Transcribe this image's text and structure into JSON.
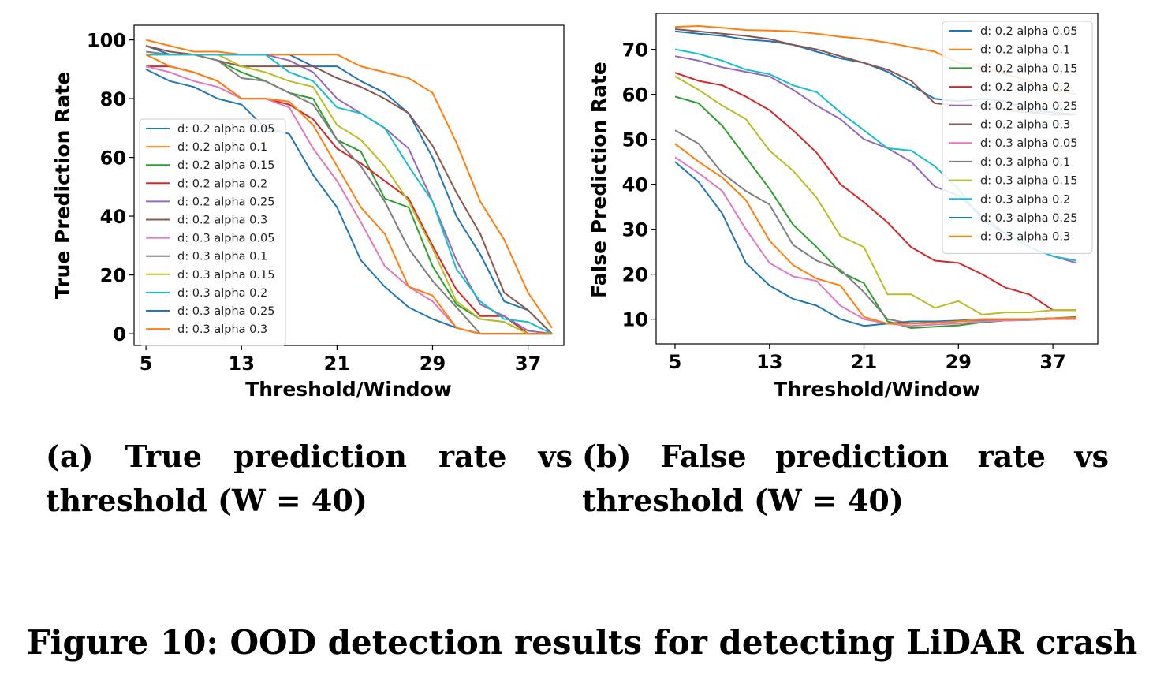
{
  "figure_caption": "Figure 10: OOD detection results for detecting LiDAR crash",
  "subcaptions": [
    "(a) True prediction rate vs threshold (W = 40)",
    "(b) False prediction rate vs threshold (W = 40)"
  ],
  "chart_data": [
    {
      "type": "line",
      "xlabel": "Threshold/Window",
      "ylabel": "True Prediction Rate",
      "xlim": [
        4,
        40
      ],
      "ylim": [
        -4,
        105
      ],
      "xticks": [
        5,
        13,
        21,
        29,
        37
      ],
      "yticks": [
        0,
        20,
        40,
        60,
        80,
        100
      ],
      "grid": false,
      "legend_position": "left",
      "x": [
        5,
        7,
        9,
        11,
        13,
        15,
        17,
        19,
        21,
        23,
        25,
        27,
        29,
        31,
        33,
        35,
        37,
        39
      ],
      "series": [
        {
          "name": "d: 0.2 alpha 0.05",
          "color": "#1f77b4",
          "values": [
            98,
            95,
            95,
            95,
            95,
            95,
            95,
            91,
            91,
            86,
            82,
            75,
            60,
            40,
            27,
            11,
            8,
            0
          ]
        },
        {
          "name": "d: 0.2 alpha 0.1",
          "color": "#ff7f0e",
          "values": [
            100,
            98,
            96,
            96,
            95,
            95,
            95,
            95,
            95,
            91,
            89,
            87,
            82,
            65,
            45,
            32,
            14,
            2
          ]
        },
        {
          "name": "d: 0.2 alpha 0.15",
          "color": "#2ca02c",
          "values": [
            95,
            95,
            95,
            93,
            89,
            86,
            82,
            80,
            66,
            62,
            46,
            43,
            23,
            10,
            5,
            4,
            0,
            0
          ]
        },
        {
          "name": "d: 0.2 alpha 0.2",
          "color": "#d62728",
          "values": [
            91,
            91,
            89,
            86,
            80,
            80,
            78,
            73,
            63,
            58,
            52,
            46,
            30,
            15,
            6,
            6,
            0,
            0
          ]
        },
        {
          "name": "d: 0.2 alpha 0.25",
          "color": "#9467bd",
          "values": [
            95,
            95,
            95,
            95,
            95,
            95,
            93,
            89,
            80,
            75,
            70,
            63,
            45,
            25,
            10,
            6,
            1,
            0
          ]
        },
        {
          "name": "d: 0.2 alpha 0.3",
          "color": "#8c564b",
          "values": [
            98,
            96,
            95,
            93,
            91,
            91,
            91,
            91,
            87,
            84,
            80,
            75,
            64,
            48,
            34,
            14,
            8,
            0
          ]
        },
        {
          "name": "d: 0.3 alpha 0.05",
          "color": "#e377c2",
          "values": [
            91,
            89,
            86,
            84,
            80,
            80,
            77,
            63,
            52,
            38,
            23,
            16,
            11,
            2,
            0,
            0,
            0,
            0
          ]
        },
        {
          "name": "d: 0.3 alpha 0.1",
          "color": "#7f7f7f",
          "values": [
            96,
            95,
            95,
            93,
            87,
            86,
            82,
            78,
            66,
            57,
            45,
            29,
            18,
            9,
            0,
            0,
            0,
            0
          ]
        },
        {
          "name": "d: 0.3 alpha 0.15",
          "color": "#bcbd22",
          "values": [
            95,
            95,
            95,
            95,
            91,
            89,
            86,
            84,
            71,
            66,
            57,
            45,
            29,
            11,
            5,
            4,
            0,
            0
          ]
        },
        {
          "name": "d: 0.3 alpha 0.2",
          "color": "#17becf",
          "values": [
            95,
            95,
            95,
            95,
            95,
            95,
            89,
            86,
            77,
            75,
            70,
            57,
            45,
            22,
            11,
            5,
            4,
            0
          ]
        },
        {
          "name": "d: 0.3 alpha 0.25",
          "color": "#1f77b4",
          "values": [
            90,
            86,
            84,
            80,
            78,
            70,
            68,
            54,
            43,
            25,
            16,
            9,
            5,
            2,
            0,
            0,
            0,
            0
          ]
        },
        {
          "name": "d: 0.3 alpha 0.3",
          "color": "#ff7f0e",
          "values": [
            95,
            91,
            89,
            86,
            80,
            80,
            79,
            71,
            57,
            43,
            34,
            16,
            13,
            2,
            0,
            0,
            0,
            0
          ]
        }
      ]
    },
    {
      "type": "line",
      "xlabel": "Threshold/Window",
      "ylabel": "False Prediction Rate",
      "xlim": [
        3.4,
        40.8
      ],
      "ylim": [
        4.5,
        78
      ],
      "xticks": [
        5,
        13,
        21,
        29,
        37
      ],
      "yticks": [
        10,
        20,
        30,
        40,
        50,
        60,
        70
      ],
      "grid": false,
      "legend_position": "upper right",
      "x": [
        5,
        7,
        9,
        11,
        13,
        15,
        17,
        19,
        21,
        23,
        25,
        27,
        29,
        31,
        33,
        35,
        37,
        39
      ],
      "series": [
        {
          "name": "d: 0.2 alpha 0.05",
          "color": "#1f77b4",
          "values": [
            74,
            73.5,
            73,
            72.2,
            71.8,
            71,
            69.5,
            68,
            67,
            65,
            62,
            59,
            58.5,
            59,
            58.5,
            56.5,
            56,
            55.5
          ]
        },
        {
          "name": "d: 0.2 alpha 0.1",
          "color": "#ff7f0e",
          "values": [
            75,
            75.2,
            74.8,
            74.3,
            74.2,
            74,
            73.5,
            72.8,
            72.3,
            71.5,
            70.5,
            69.5,
            67,
            66,
            64.5,
            63,
            61,
            60
          ]
        },
        {
          "name": "d: 0.2 alpha 0.15",
          "color": "#2ca02c",
          "values": [
            59.5,
            58,
            53,
            46,
            39,
            31,
            26,
            20.5,
            18,
            9.5,
            8,
            8.3,
            8.6,
            9.3,
            9.7,
            9.8,
            10.2,
            10.5
          ]
        },
        {
          "name": "d: 0.2 alpha 0.2",
          "color": "#d62728",
          "values": [
            64.8,
            63,
            62,
            59.5,
            56.5,
            52,
            47,
            40,
            36,
            31.5,
            26,
            23,
            22.5,
            20,
            17,
            15.5,
            12,
            12
          ]
        },
        {
          "name": "d: 0.2 alpha 0.25",
          "color": "#9467bd",
          "values": [
            68.5,
            67.5,
            66,
            65,
            64,
            61,
            57.5,
            54.5,
            50,
            48,
            45,
            39.5,
            37.5,
            33,
            29,
            26,
            24,
            22.5
          ]
        },
        {
          "name": "d: 0.2 alpha 0.3",
          "color": "#8c564b",
          "values": [
            74.5,
            74,
            73.5,
            73,
            72.3,
            71,
            70,
            68.5,
            67,
            65.5,
            63,
            58,
            57.5,
            57.5,
            56.5,
            56,
            55.5,
            55.5
          ]
        },
        {
          "name": "d: 0.3 alpha 0.05",
          "color": "#e377c2",
          "values": [
            46,
            42.5,
            38.5,
            30,
            22.5,
            19.5,
            18.5,
            13,
            10,
            9,
            8.5,
            8.8,
            9,
            9.5,
            9.7,
            9.8,
            10,
            10
          ]
        },
        {
          "name": "d: 0.3 alpha 0.1",
          "color": "#7f7f7f",
          "values": [
            52,
            49,
            42.5,
            38.5,
            35.5,
            26.5,
            23,
            21,
            16,
            10,
            9,
            9.2,
            9.5,
            9.8,
            10,
            10,
            10.2,
            10.3
          ]
        },
        {
          "name": "d: 0.3 alpha 0.15",
          "color": "#bcbd22",
          "values": [
            64,
            61,
            57.5,
            54.5,
            47.5,
            43,
            37,
            28.5,
            26,
            15.5,
            15.5,
            12.5,
            14,
            11,
            11.5,
            11.5,
            12,
            12
          ]
        },
        {
          "name": "d: 0.3 alpha 0.2",
          "color": "#17becf",
          "values": [
            70,
            69,
            67.5,
            65.5,
            64.5,
            62,
            60.5,
            56,
            52,
            48,
            47.5,
            44,
            39,
            32,
            29,
            26,
            24,
            23
          ]
        },
        {
          "name": "d: 0.3 alpha 0.25",
          "color": "#1f77b4",
          "values": [
            45,
            40.5,
            33.5,
            22.5,
            17.5,
            14.5,
            13,
            10,
            8.5,
            9,
            9.5,
            9.5,
            9.7,
            10,
            10,
            10,
            10.2,
            10.3
          ]
        },
        {
          "name": "d: 0.3 alpha 0.3",
          "color": "#ff7f0e",
          "values": [
            49,
            45,
            41.5,
            36.5,
            27.5,
            22,
            19,
            17.5,
            10.5,
            9,
            9,
            9.2,
            9.5,
            10,
            10,
            10,
            10.2,
            10.3
          ]
        }
      ]
    }
  ]
}
